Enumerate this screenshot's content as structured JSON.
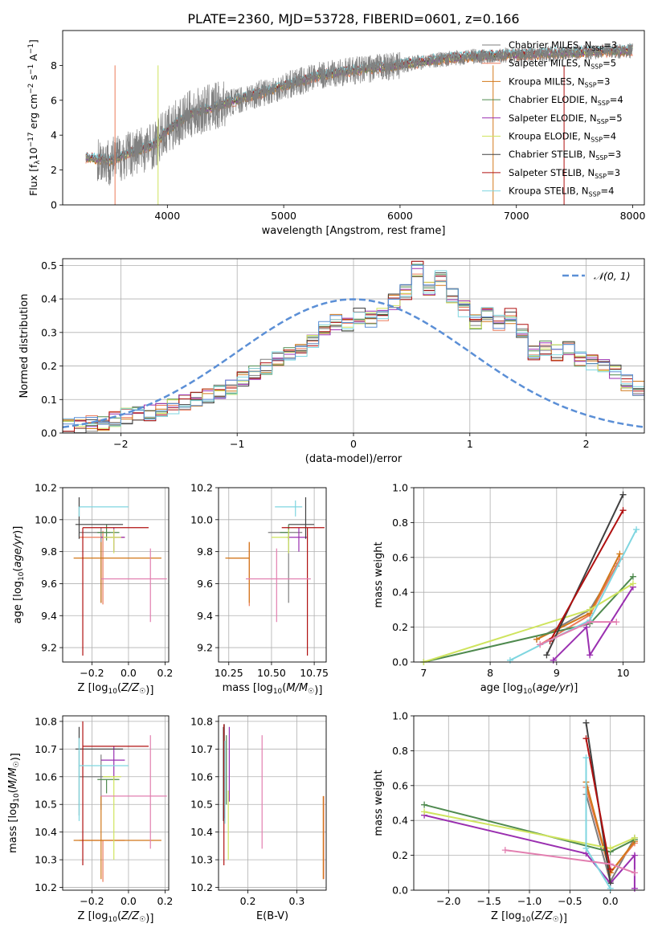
{
  "figure_title": "PLATE=2360, MJD=53728, FIBERID=0601, z=0.166",
  "legend_entries": [
    {
      "model": "Chabrier MILES",
      "n": "3",
      "color": "#7f7f7f"
    },
    {
      "model": "Salpeter MILES",
      "n": "5",
      "color": "#ec7a5a"
    },
    {
      "model": "Kroupa MILES",
      "n": "3",
      "color": "#d2781a"
    },
    {
      "model": "Chabrier ELODIE",
      "n": "4",
      "color": "#4f8a4f"
    },
    {
      "model": "Salpeter ELODIE",
      "n": "5",
      "color": "#9a2fb0"
    },
    {
      "model": "Kroupa ELODIE",
      "n": "4",
      "color": "#cfe45e"
    },
    {
      "model": "Chabrier STELIB",
      "n": "3",
      "color": "#404040"
    },
    {
      "model": "Salpeter STELIB",
      "n": "3",
      "color": "#b01010"
    },
    {
      "model": "Kroupa STELIB",
      "n": "4",
      "color": "#7fd6e0"
    }
  ],
  "chart_data": [
    {
      "id": "spectrum",
      "type": "line",
      "title": "PLATE=2360, MJD=53728, FIBERID=0601, z=0.166",
      "xlabel": "wavelength [Angstrom, rest frame]",
      "ylabel": "Flux [f_λ 10^-17 erg cm^-2 s^-1 A^-1]",
      "xlim": [
        3100,
        8100
      ],
      "ylim": [
        0,
        10
      ],
      "xticks": [
        4000,
        5000,
        6000,
        7000,
        8000
      ],
      "yticks": [
        0,
        2,
        4,
        6,
        8
      ],
      "continuum": {
        "x": [
          3300,
          3500,
          3700,
          3900,
          4000,
          4200,
          4500,
          4800,
          5000,
          5300,
          5600,
          6000,
          6300,
          6600,
          7000,
          7400,
          7800,
          8000
        ],
        "y": [
          2.7,
          2.5,
          3.0,
          3.5,
          4.3,
          5.2,
          5.8,
          6.4,
          6.8,
          7.4,
          7.7,
          8.0,
          8.3,
          8.5,
          8.6,
          8.7,
          8.8,
          8.85
        ]
      },
      "series_legend": "legend_entries"
    },
    {
      "id": "residuals",
      "type": "step",
      "xlabel": "(data-model)/error",
      "ylabel": "Normed distribution",
      "xlim": [
        -2.5,
        2.5
      ],
      "ylim": [
        0,
        0.52
      ],
      "xticks": [
        -2,
        -1,
        0,
        1,
        2
      ],
      "yticks": [
        0.0,
        0.1,
        0.2,
        0.3,
        0.4,
        0.5
      ],
      "bin_width": 0.1,
      "gaussian_label": "𝒩(0, 1)",
      "base_hist": [
        0.02,
        0.025,
        0.03,
        0.03,
        0.04,
        0.05,
        0.055,
        0.06,
        0.07,
        0.08,
        0.09,
        0.1,
        0.11,
        0.12,
        0.14,
        0.16,
        0.18,
        0.2,
        0.22,
        0.23,
        0.25,
        0.28,
        0.31,
        0.33,
        0.32,
        0.35,
        0.34,
        0.36,
        0.39,
        0.42,
        0.49,
        0.43,
        0.46,
        0.41,
        0.37,
        0.33,
        0.35,
        0.33,
        0.35,
        0.31,
        0.24,
        0.25,
        0.24,
        0.25,
        0.22,
        0.21,
        0.2,
        0.18,
        0.15,
        0.13,
        0.11,
        0.09,
        0.08,
        0.07,
        0.06,
        0.055,
        0.05,
        0.04,
        0.035,
        0.03
      ],
      "hist_start": -2.5
    },
    {
      "id": "age_vs_Z",
      "type": "errorbar",
      "xlabel": "Z [log10(Z/Z☉)]",
      "ylabel": "age [log10(age/yr)]",
      "xlim": [
        -0.36,
        0.22
      ],
      "ylim": [
        9.11,
        10.2
      ],
      "xticks": [
        -0.2,
        0.0,
        0.2
      ],
      "yticks": [
        9.2,
        9.4,
        9.6,
        9.8,
        10.0,
        10.2
      ],
      "points": [
        {
          "x": -0.15,
          "xerr": [
            0.12,
            0.05
          ],
          "y": 9.92,
          "yerr": [
            0.44,
            0.03
          ],
          "color": "#7f7f7f"
        },
        {
          "x": -0.14,
          "xerr": [
            0.13,
            0.12
          ],
          "y": 9.89,
          "yerr": [
            0.42,
            0.04
          ],
          "color": "#ec7a5a"
        },
        {
          "x": -0.15,
          "xerr": [
            0.15,
            0.33
          ],
          "y": 9.76,
          "yerr": [
            0.28,
            0.1
          ],
          "color": "#d2781a"
        },
        {
          "x": -0.12,
          "xerr": [
            0.05,
            0.07
          ],
          "y": 9.92,
          "yerr": [
            0.05,
            0.05
          ],
          "color": "#4f8a4f"
        },
        {
          "x": -0.08,
          "xerr": [
            0.07,
            0.06
          ],
          "y": 9.89,
          "yerr": [
            0.09,
            0.06
          ],
          "color": "#9a2fb0"
        },
        {
          "x": -0.08,
          "xerr": [
            0.06,
            0.04
          ],
          "y": 9.89,
          "yerr": [
            0.1,
            0.05
          ],
          "color": "#cfe45e"
        },
        {
          "x": -0.27,
          "xerr": [
            0.02,
            0.24
          ],
          "y": 9.97,
          "yerr": [
            0.09,
            0.17
          ],
          "color": "#404040"
        },
        {
          "x": -0.25,
          "xerr": [
            0.0,
            0.36
          ],
          "y": 9.95,
          "yerr": [
            0.8,
            0.0
          ],
          "color": "#b01010"
        },
        {
          "x": -0.27,
          "xerr": [
            0.0,
            0.27
          ],
          "y": 10.08,
          "yerr": [
            0.06,
            0.0
          ],
          "color": "#7fd6e0"
        },
        {
          "x": 0.12,
          "xerr": [
            0.27,
            0.09
          ],
          "y": 9.63,
          "yerr": [
            0.27,
            0.19
          ],
          "color": "#e27fb0"
        }
      ]
    },
    {
      "id": "age_vs_mass",
      "type": "errorbar",
      "xlabel": "mass [log10(M/M☉)]",
      "ylabel": "",
      "xlim": [
        10.19,
        10.82
      ],
      "ylim": [
        9.11,
        10.2
      ],
      "xticks": [
        10.25,
        10.5,
        10.75
      ],
      "yticks": [
        9.2,
        9.4,
        9.6,
        9.8,
        10.0,
        10.2
      ],
      "points": [
        {
          "x": 10.6,
          "xerr": [
            0.12,
            0.08
          ],
          "y": 9.92,
          "yerr": [
            0.44,
            0.03
          ],
          "color": "#7f7f7f"
        },
        {
          "x": 10.37,
          "xerr": [
            0.12,
            0.0
          ],
          "y": 9.76,
          "yerr": [
            0.3,
            0.1
          ],
          "color": "#ec7a5a"
        },
        {
          "x": 10.37,
          "xerr": [
            0.14,
            0.0
          ],
          "y": 9.76,
          "yerr": [
            0.28,
            0.1
          ],
          "color": "#d2781a"
        },
        {
          "x": 10.6,
          "xerr": [
            0.05,
            0.0
          ],
          "y": 9.92,
          "yerr": [
            0.05,
            0.05
          ],
          "color": "#4f8a4f"
        },
        {
          "x": 10.66,
          "xerr": [
            0.07,
            0.05
          ],
          "y": 9.89,
          "yerr": [
            0.09,
            0.06
          ],
          "color": "#9a2fb0"
        },
        {
          "x": 10.6,
          "xerr": [
            0.1,
            0.0
          ],
          "y": 9.89,
          "yerr": [
            0.1,
            0.05
          ],
          "color": "#cfe45e"
        },
        {
          "x": 10.7,
          "xerr": [
            0.1,
            0.05
          ],
          "y": 9.97,
          "yerr": [
            0.09,
            0.17
          ],
          "color": "#404040"
        },
        {
          "x": 10.71,
          "xerr": [
            0.15,
            0.1
          ],
          "y": 9.95,
          "yerr": [
            0.8,
            0.0
          ],
          "color": "#b01010"
        },
        {
          "x": 10.64,
          "xerr": [
            0.12,
            0.04
          ],
          "y": 10.08,
          "yerr": [
            0.06,
            0.04
          ],
          "color": "#7fd6e0"
        },
        {
          "x": 10.53,
          "xerr": [
            0.18,
            0.2
          ],
          "y": 9.63,
          "yerr": [
            0.27,
            0.19
          ],
          "color": "#e27fb0"
        }
      ]
    },
    {
      "id": "weight_vs_age",
      "type": "line",
      "xlabel": "age [log10(age/yr)]",
      "ylabel": "mass weight",
      "xlim": [
        6.85,
        10.32
      ],
      "ylim": [
        0,
        1
      ],
      "xticks": [
        7,
        8,
        9,
        10
      ],
      "yticks": [
        0.0,
        0.2,
        0.4,
        0.6,
        0.8,
        1.0
      ],
      "series": [
        {
          "color": "#7f7f7f",
          "x": [
            8.7,
            9.5,
            9.9
          ],
          "y": [
            0.13,
            0.3,
            0.55
          ]
        },
        {
          "color": "#ec7a5a",
          "x": [
            8.75,
            9.5,
            9.95
          ],
          "y": [
            0.1,
            0.27,
            0.59
          ]
        },
        {
          "color": "#d2781a",
          "x": [
            8.7,
            9.5,
            9.95
          ],
          "y": [
            0.13,
            0.28,
            0.62
          ]
        },
        {
          "color": "#4f8a4f",
          "x": [
            7.0,
            9.5,
            10.15
          ],
          "y": [
            0.0,
            0.22,
            0.49
          ]
        },
        {
          "color": "#9a2fb0",
          "x": [
            8.95,
            9.45,
            9.5,
            10.15
          ],
          "y": [
            0.01,
            0.2,
            0.04,
            0.43
          ]
        },
        {
          "color": "#cfe45e",
          "x": [
            7.0,
            9.5,
            10.15
          ],
          "y": [
            0.0,
            0.3,
            0.45
          ]
        },
        {
          "color": "#404040",
          "x": [
            8.85,
            10.0
          ],
          "y": [
            0.04,
            0.96
          ]
        },
        {
          "color": "#b01010",
          "x": [
            8.9,
            10.0
          ],
          "y": [
            0.12,
            0.87
          ]
        },
        {
          "color": "#7fd6e0",
          "x": [
            8.3,
            9.5,
            10.2
          ],
          "y": [
            0.01,
            0.24,
            0.76
          ]
        },
        {
          "color": "#e27fb0",
          "x": [
            8.75,
            9.5,
            9.9
          ],
          "y": [
            0.1,
            0.23,
            0.23
          ]
        }
      ]
    },
    {
      "id": "mass_vs_Z",
      "type": "errorbar",
      "xlabel": "Z [log10(Z/Z☉)]",
      "ylabel": "mass [log10(M/M☉)]",
      "xlim": [
        -0.36,
        0.22
      ],
      "ylim": [
        10.19,
        10.82
      ],
      "xticks": [
        -0.2,
        0.0,
        0.2
      ],
      "yticks": [
        10.2,
        10.3,
        10.4,
        10.5,
        10.6,
        10.7,
        10.8
      ],
      "points": [
        {
          "x": -0.15,
          "xerr": [
            0.12,
            0.05
          ],
          "y": 10.6,
          "yerr": [
            0.12,
            0.08
          ],
          "color": "#7f7f7f"
        },
        {
          "x": -0.14,
          "xerr": [
            0.13,
            0.12
          ],
          "y": 10.37,
          "yerr": [
            0.15,
            0.0
          ],
          "color": "#ec7a5a"
        },
        {
          "x": -0.15,
          "xerr": [
            0.15,
            0.33
          ],
          "y": 10.37,
          "yerr": [
            0.14,
            0.16
          ],
          "color": "#d2781a"
        },
        {
          "x": -0.12,
          "xerr": [
            0.05,
            0.07
          ],
          "y": 10.59,
          "yerr": [
            0.05,
            0.0
          ],
          "color": "#4f8a4f"
        },
        {
          "x": -0.08,
          "xerr": [
            0.07,
            0.06
          ],
          "y": 10.66,
          "yerr": [
            0.07,
            0.05
          ],
          "color": "#9a2fb0"
        },
        {
          "x": -0.08,
          "xerr": [
            0.06,
            0.04
          ],
          "y": 10.6,
          "yerr": [
            0.3,
            0.0
          ],
          "color": "#cfe45e"
        },
        {
          "x": -0.27,
          "xerr": [
            0.02,
            0.24
          ],
          "y": 10.7,
          "yerr": [
            0.24,
            0.08
          ],
          "color": "#404040"
        },
        {
          "x": -0.25,
          "xerr": [
            0.0,
            0.36
          ],
          "y": 10.71,
          "yerr": [
            0.43,
            0.09
          ],
          "color": "#b01010"
        },
        {
          "x": -0.27,
          "xerr": [
            0.0,
            0.27
          ],
          "y": 10.64,
          "yerr": [
            0.2,
            0.1
          ],
          "color": "#7fd6e0"
        },
        {
          "x": 0.12,
          "xerr": [
            0.27,
            0.09
          ],
          "y": 10.53,
          "yerr": [
            0.19,
            0.22
          ],
          "color": "#e27fb0"
        }
      ]
    },
    {
      "id": "mass_vs_EBV",
      "type": "errorbar",
      "xlabel": "E(B-V)",
      "ylabel": "",
      "xlim": [
        0.14,
        0.36
      ],
      "ylim": [
        10.19,
        10.82
      ],
      "xticks": [
        0.2,
        0.3
      ],
      "yticks": [
        10.2,
        10.3,
        10.4,
        10.5,
        10.6,
        10.7,
        10.8
      ],
      "points": [
        {
          "x": 0.152,
          "xerr": [
            0,
            0
          ],
          "y": 10.6,
          "yerr": [
            0.15,
            0.19
          ],
          "color": "#7f7f7f"
        },
        {
          "x": 0.355,
          "xerr": [
            0,
            0
          ],
          "y": 10.37,
          "yerr": [
            0.14,
            0.16
          ],
          "color": "#ec7a5a"
        },
        {
          "x": 0.354,
          "xerr": [
            0,
            0
          ],
          "y": 10.37,
          "yerr": [
            0.14,
            0.16
          ],
          "color": "#d2781a"
        },
        {
          "x": 0.156,
          "xerr": [
            0,
            0
          ],
          "y": 10.62,
          "yerr": [
            0.12,
            0.13
          ],
          "color": "#4f8a4f"
        },
        {
          "x": 0.162,
          "xerr": [
            0,
            0
          ],
          "y": 10.63,
          "yerr": [
            0.12,
            0.15
          ],
          "color": "#9a2fb0"
        },
        {
          "x": 0.16,
          "xerr": [
            0,
            0
          ],
          "y": 10.4,
          "yerr": [
            0.1,
            0.15
          ],
          "color": "#cfe45e"
        },
        {
          "x": 0.15,
          "xerr": [
            0,
            0
          ],
          "y": 10.59,
          "yerr": [
            0.15,
            0.19
          ],
          "color": "#404040"
        },
        {
          "x": 0.151,
          "xerr": [
            0,
            0
          ],
          "y": 10.53,
          "yerr": [
            0.25,
            0.26
          ],
          "color": "#b01010"
        },
        {
          "x": 0.153,
          "xerr": [
            0,
            0
          ],
          "y": 10.6,
          "yerr": [
            0.17,
            0.13
          ],
          "color": "#7fd6e0"
        },
        {
          "x": 0.229,
          "xerr": [
            0,
            0
          ],
          "y": 10.55,
          "yerr": [
            0.21,
            0.2
          ],
          "color": "#e27fb0"
        }
      ]
    },
    {
      "id": "weight_vs_Z",
      "type": "line",
      "xlabel": "Z [log10(Z/Z☉)]",
      "ylabel": "mass weight",
      "xlim": [
        -2.43,
        0.42
      ],
      "ylim": [
        0,
        1
      ],
      "xticks": [
        -2.0,
        -1.5,
        -1.0,
        -0.5,
        0.0
      ],
      "yticks": [
        0.0,
        0.2,
        0.4,
        0.6,
        0.8,
        1.0
      ],
      "series": [
        {
          "color": "#7f7f7f",
          "x": [
            -0.3,
            0.0,
            0.3
          ],
          "y": [
            0.55,
            0.05,
            0.3
          ]
        },
        {
          "color": "#ec7a5a",
          "x": [
            -0.3,
            0.0,
            0.3
          ],
          "y": [
            0.59,
            0.1,
            0.27
          ]
        },
        {
          "color": "#d2781a",
          "x": [
            -0.3,
            0.0,
            0.3
          ],
          "y": [
            0.62,
            0.1,
            0.28
          ]
        },
        {
          "color": "#4f8a4f",
          "x": [
            -2.3,
            0.0,
            0.3
          ],
          "y": [
            0.49,
            0.22,
            0.29
          ]
        },
        {
          "color": "#9a2fb0",
          "x": [
            -2.3,
            -0.3,
            0.0,
            0.3,
            0.3
          ],
          "y": [
            0.43,
            0.21,
            0.04,
            0.2,
            0.01
          ]
        },
        {
          "color": "#cfe45e",
          "x": [
            -2.3,
            0.0,
            0.3
          ],
          "y": [
            0.45,
            0.24,
            0.3
          ]
        },
        {
          "color": "#404040",
          "x": [
            -0.3,
            0.0
          ],
          "y": [
            0.96,
            0.04
          ]
        },
        {
          "color": "#b01010",
          "x": [
            -0.3,
            0.0
          ],
          "y": [
            0.87,
            0.12
          ]
        },
        {
          "color": "#7fd6e0",
          "x": [
            -0.3,
            -0.3,
            0.0
          ],
          "y": [
            0.76,
            0.24,
            0.01
          ]
        },
        {
          "color": "#e27fb0",
          "x": [
            -1.3,
            0.0,
            0.3
          ],
          "y": [
            0.23,
            0.15,
            0.1
          ]
        }
      ]
    }
  ]
}
